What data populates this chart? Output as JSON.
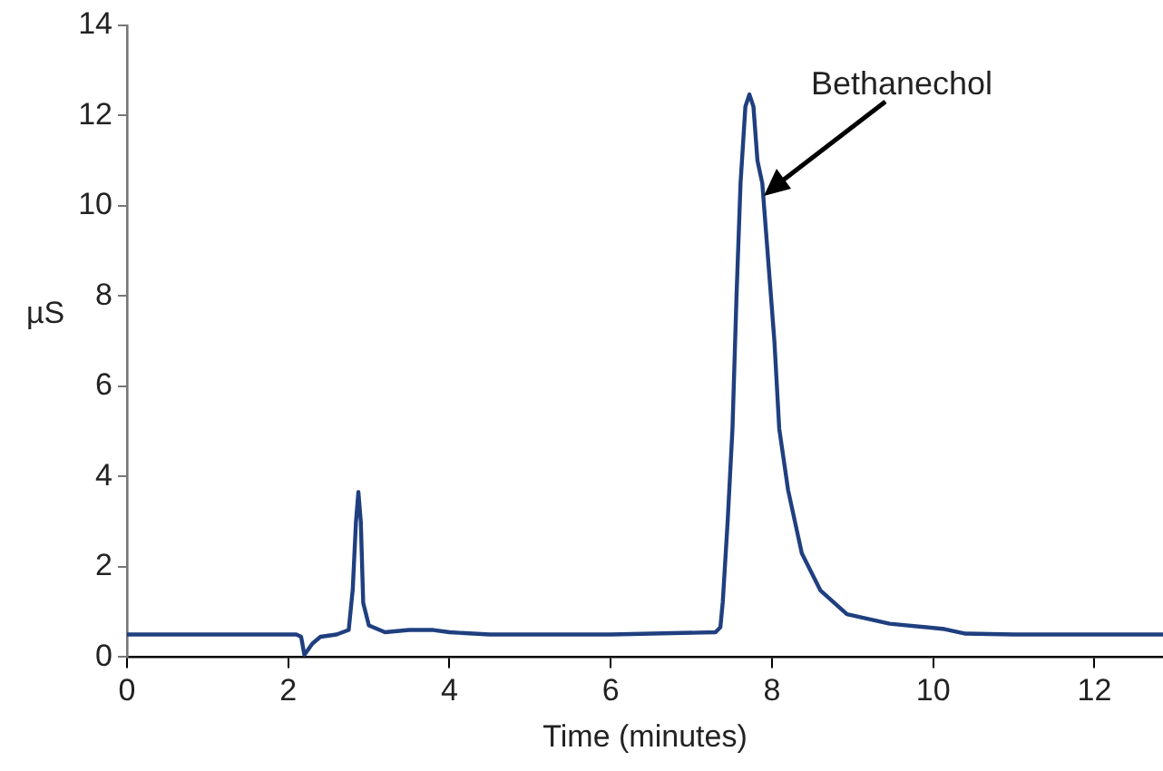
{
  "chart_data": {
    "type": "line",
    "xlabel": "Time (minutes)",
    "ylabel": "µS",
    "xlim": [
      0,
      12.85
    ],
    "xticks": [
      0,
      2,
      4,
      6,
      8,
      10,
      12
    ],
    "ylim": [
      0,
      14
    ],
    "yticks": [
      0,
      2,
      4,
      6,
      8,
      10,
      12,
      14
    ],
    "grid": false,
    "legend": false,
    "marker": "none",
    "line_style": "solid",
    "annotations": [
      "Bethanechol"
    ],
    "series": [
      {
        "color": "#1f3f7f",
        "x": [
          0,
          1,
          2.1,
          2.16,
          2.2,
          2.3,
          2.4,
          2.6,
          2.75,
          2.8,
          2.84,
          2.87,
          2.9,
          2.93,
          3.0,
          3.2,
          3.5,
          3.8,
          4.0,
          4.5,
          6,
          7.3,
          7.36,
          7.39,
          7.45,
          7.51,
          7.56,
          7.61,
          7.67,
          7.72,
          7.77,
          7.82,
          7.88,
          8.03,
          8.09,
          8.2,
          8.37,
          8.6,
          8.93,
          9.46,
          10.14,
          10.4,
          11,
          12.85
        ],
        "values": [
          0.5,
          0.5,
          0.5,
          0.45,
          0.05,
          0.3,
          0.45,
          0.5,
          0.6,
          1.5,
          3.0,
          3.66,
          3.0,
          1.2,
          0.7,
          0.55,
          0.6,
          0.6,
          0.55,
          0.5,
          0.5,
          0.55,
          0.66,
          1.23,
          3.0,
          5.06,
          8.0,
          10.5,
          12.2,
          12.47,
          12.2,
          11.0,
          10.5,
          7.0,
          5.06,
          3.7,
          2.3,
          1.48,
          0.95,
          0.74,
          0.62,
          0.52,
          0.5,
          0.5
        ]
      }
    ]
  }
}
